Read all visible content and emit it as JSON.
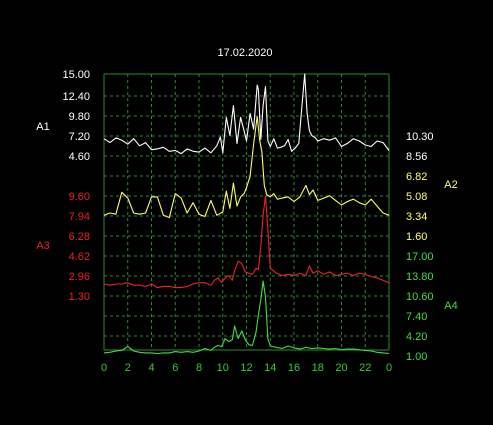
{
  "chart_data": {
    "type": "line",
    "title": "17.02.2020",
    "xlim": [
      0,
      24
    ],
    "x_ticks": [
      "0",
      "2",
      "4",
      "6",
      "8",
      "10",
      "12",
      "14",
      "16",
      "18",
      "20",
      "22",
      "0"
    ],
    "grid": true,
    "background": "#000000",
    "grid_color": "#2f8a2f",
    "title_color": "#ffffff",
    "series": [
      {
        "name": "A1",
        "color": "#ffffff",
        "axis_side": "left",
        "ticks": [
          "15.00",
          "12.40",
          "9.80",
          "7.20",
          "4.60"
        ],
        "tick_values": [
          15.0,
          12.4,
          9.8,
          7.2,
          4.6
        ],
        "secondary_ticks": [
          "10.30",
          "8.56"
        ],
        "x": [
          0.0,
          0.5,
          1.0,
          1.5,
          2.0,
          2.5,
          3.0,
          3.5,
          4.0,
          4.5,
          5.0,
          5.5,
          6.0,
          6.5,
          7.0,
          7.5,
          8.0,
          8.5,
          9.0,
          9.5,
          9.8,
          10.0,
          10.3,
          10.6,
          10.9,
          11.2,
          11.5,
          11.8,
          12.0,
          12.3,
          12.6,
          12.9,
          13.0,
          13.2,
          13.4,
          13.6,
          13.8,
          14.0,
          14.3,
          14.6,
          14.9,
          15.2,
          15.5,
          15.8,
          16.1,
          16.4,
          16.7,
          16.9,
          17.1,
          17.3,
          17.5,
          17.8,
          18.0,
          18.5,
          19.0,
          19.5,
          20.0,
          20.5,
          21.0,
          21.5,
          22.0,
          22.5,
          23.0,
          23.5,
          24.0
        ],
        "y": [
          6.8,
          6.3,
          6.9,
          6.6,
          6.1,
          6.8,
          5.9,
          6.3,
          5.4,
          5.5,
          5.7,
          5.2,
          5.3,
          4.9,
          5.5,
          5.2,
          5.1,
          5.6,
          5.0,
          5.9,
          7.0,
          5.0,
          9.5,
          7.2,
          11.0,
          6.2,
          9.5,
          7.8,
          6.5,
          10.0,
          8.0,
          13.6,
          13.0,
          6.7,
          11.0,
          13.4,
          6.5,
          5.8,
          6.8,
          5.6,
          5.7,
          5.9,
          6.7,
          5.2,
          5.6,
          6.2,
          11.5,
          15.0,
          10.0,
          7.8,
          7.2,
          6.9,
          6.5,
          6.8,
          6.6,
          6.9,
          5.8,
          6.2,
          6.8,
          6.5,
          6.0,
          5.8,
          6.5,
          6.3,
          5.3
        ]
      },
      {
        "name": "A2",
        "color": "#ffff66",
        "axis_side": "right",
        "ticks": [
          "6.82",
          "5.08",
          "3.34",
          "1.60"
        ],
        "tick_values": [
          6.82,
          5.08,
          3.34,
          1.6
        ],
        "x": [
          0.0,
          0.5,
          1.0,
          1.5,
          2.0,
          2.5,
          3.0,
          3.5,
          4.0,
          4.5,
          5.0,
          5.5,
          6.0,
          6.5,
          7.0,
          7.5,
          8.0,
          8.5,
          9.0,
          9.5,
          10.0,
          10.3,
          10.6,
          10.9,
          11.2,
          11.5,
          11.8,
          12.0,
          12.3,
          12.6,
          12.9,
          13.1,
          13.3,
          13.5,
          13.7,
          14.0,
          14.3,
          14.6,
          15.0,
          15.5,
          16.0,
          16.5,
          17.0,
          17.3,
          17.6,
          18.0,
          18.5,
          19.0,
          19.5,
          20.0,
          20.5,
          21.0,
          21.5,
          22.0,
          22.5,
          23.0,
          23.5,
          24.0
        ],
        "y": [
          3.4,
          3.6,
          3.5,
          5.4,
          4.9,
          3.6,
          3.5,
          3.6,
          5.0,
          5.0,
          3.4,
          3.2,
          5.3,
          4.9,
          3.6,
          4.5,
          3.5,
          3.3,
          4.7,
          3.4,
          3.7,
          5.5,
          4.0,
          6.2,
          4.2,
          5.0,
          5.3,
          5.8,
          6.8,
          9.6,
          12.0,
          10.0,
          8.9,
          6.0,
          5.2,
          5.0,
          5.3,
          4.8,
          4.9,
          5.0,
          4.6,
          5.0,
          6.0,
          5.2,
          5.6,
          4.7,
          4.9,
          5.1,
          4.7,
          4.3,
          4.6,
          4.8,
          4.5,
          4.3,
          4.8,
          4.2,
          3.6,
          3.4
        ]
      },
      {
        "name": "A3",
        "color": "#ee2222",
        "axis_side": "left",
        "ticks": [
          "9.60",
          "7.94",
          "6.28",
          "4.62",
          "2.96",
          "1.30"
        ],
        "tick_values": [
          9.6,
          7.94,
          6.28,
          4.62,
          2.96,
          1.3
        ],
        "x": [
          0.0,
          0.5,
          1.0,
          1.5,
          2.0,
          2.5,
          3.0,
          3.5,
          4.0,
          4.5,
          5.0,
          5.5,
          6.0,
          6.5,
          7.0,
          7.5,
          8.0,
          8.5,
          9.0,
          9.3,
          9.6,
          9.9,
          10.2,
          10.5,
          10.8,
          11.0,
          11.3,
          11.6,
          11.9,
          12.2,
          12.5,
          12.8,
          13.0,
          13.2,
          13.4,
          13.6,
          13.8,
          14.0,
          14.5,
          15.0,
          15.5,
          16.0,
          16.5,
          17.0,
          17.3,
          17.6,
          18.0,
          18.5,
          19.0,
          19.5,
          20.0,
          20.5,
          21.0,
          21.5,
          22.0,
          22.5,
          23.0,
          23.5,
          24.0
        ],
        "y": [
          2.3,
          2.2,
          2.3,
          2.3,
          2.4,
          2.2,
          2.2,
          2.1,
          2.3,
          2.0,
          2.1,
          2.1,
          2.0,
          2.0,
          2.1,
          2.3,
          2.4,
          2.4,
          2.2,
          2.6,
          2.8,
          2.4,
          2.8,
          3.0,
          2.6,
          3.4,
          4.2,
          4.0,
          3.3,
          3.2,
          3.1,
          3.6,
          3.5,
          5.4,
          8.0,
          9.6,
          6.8,
          3.6,
          3.2,
          3.0,
          3.1,
          3.0,
          3.2,
          3.0,
          3.8,
          3.2,
          3.4,
          3.1,
          3.3,
          3.0,
          3.1,
          3.2,
          3.0,
          3.2,
          3.1,
          2.9,
          2.8,
          2.6,
          2.4
        ]
      },
      {
        "name": "A4",
        "color": "#44dd44",
        "axis_side": "right",
        "ticks": [
          "17.00",
          "13.80",
          "10.60",
          "7.40",
          "4.20",
          "1.00"
        ],
        "tick_values": [
          17.0,
          13.8,
          10.6,
          7.4,
          4.2,
          1.0
        ],
        "x": [
          0.0,
          0.5,
          1.0,
          1.5,
          2.0,
          2.5,
          3.0,
          3.5,
          4.0,
          4.5,
          5.0,
          5.5,
          6.0,
          6.5,
          7.0,
          7.5,
          8.0,
          8.5,
          9.0,
          9.3,
          9.6,
          9.9,
          10.2,
          10.5,
          10.8,
          11.0,
          11.3,
          11.6,
          11.9,
          12.2,
          12.5,
          12.8,
          13.0,
          13.2,
          13.4,
          13.6,
          13.8,
          14.0,
          14.5,
          15.0,
          15.5,
          16.0,
          16.5,
          17.0,
          17.5,
          18.0,
          18.5,
          19.0,
          19.5,
          20.0,
          20.5,
          21.0,
          21.5,
          22.0,
          22.5,
          23.0,
          23.5,
          24.0
        ],
        "y": [
          1.5,
          1.6,
          1.8,
          1.9,
          2.5,
          1.8,
          1.6,
          1.5,
          1.5,
          1.4,
          1.5,
          1.5,
          1.7,
          1.6,
          1.7,
          1.6,
          1.8,
          2.2,
          1.9,
          2.4,
          2.7,
          2.5,
          3.8,
          3.3,
          3.6,
          5.8,
          3.8,
          5.0,
          3.6,
          2.8,
          2.7,
          4.8,
          7.6,
          10.0,
          13.0,
          10.4,
          3.8,
          2.6,
          2.4,
          2.2,
          2.6,
          2.3,
          2.1,
          2.4,
          2.2,
          2.3,
          2.2,
          2.1,
          2.2,
          2.0,
          2.1,
          2.1,
          2.0,
          1.9,
          1.8,
          1.6,
          1.5,
          1.4
        ]
      }
    ]
  }
}
